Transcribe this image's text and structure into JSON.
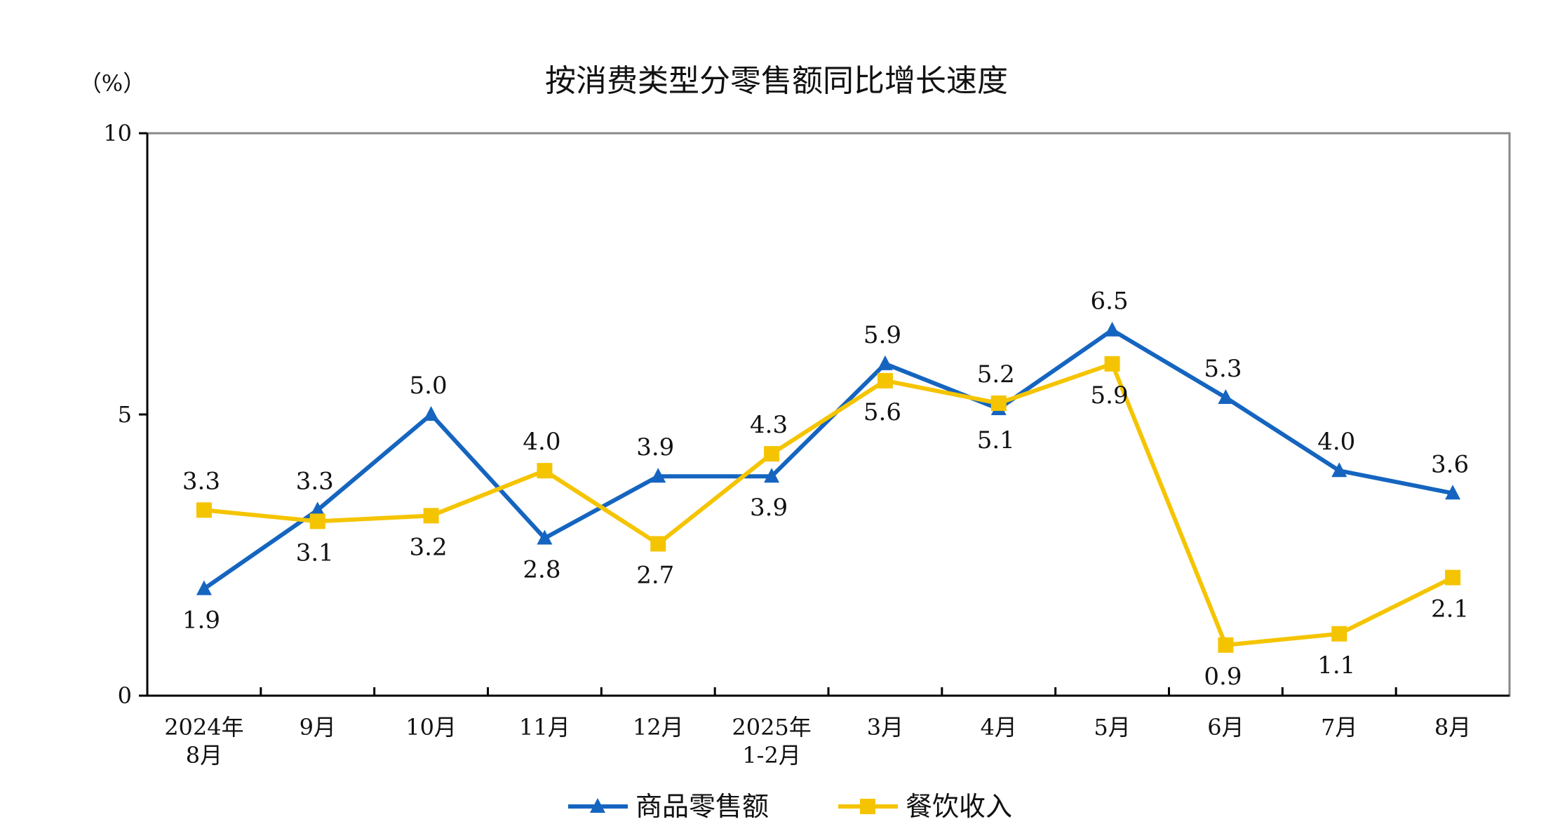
{
  "chart_data": {
    "type": "line",
    "title": "按消费类型分零售额同比增长速度",
    "unit_label": "（%）",
    "ylim": [
      0,
      10
    ],
    "yticks": [
      "0",
      "5",
      "10"
    ],
    "ytick_values": [
      0,
      5,
      10
    ],
    "categories": [
      [
        "2024年",
        "8月"
      ],
      [
        "9月"
      ],
      [
        "10月"
      ],
      [
        "11月"
      ],
      [
        "12月"
      ],
      [
        "2025年",
        "1-2月"
      ],
      [
        "3月"
      ],
      [
        "4月"
      ],
      [
        "5月"
      ],
      [
        "6月"
      ],
      [
        "7月"
      ],
      [
        "8月"
      ]
    ],
    "series": [
      {
        "name": "商品零售额",
        "color": "#1565C0",
        "marker": "triangle",
        "values": [
          1.9,
          3.3,
          5.0,
          2.8,
          3.9,
          3.9,
          5.9,
          5.1,
          6.5,
          5.3,
          4.0,
          3.6
        ],
        "labels": [
          "1.9",
          "3.3",
          "5.0",
          "2.8",
          "3.9",
          "3.9",
          "5.9",
          "5.1",
          "6.5",
          "5.3",
          "4.0",
          "3.6"
        ],
        "label_pos": [
          "below",
          "above",
          "above",
          "below",
          "above",
          "below",
          "above",
          "below",
          "above",
          "above",
          "above",
          "above"
        ]
      },
      {
        "name": "餐饮收入",
        "color": "#F5C400",
        "marker": "square",
        "values": [
          3.3,
          3.1,
          3.2,
          4.0,
          2.7,
          4.3,
          5.6,
          5.2,
          5.9,
          0.9,
          1.1,
          2.1
        ],
        "labels": [
          "3.3",
          "3.1",
          "3.2",
          "4.0",
          "2.7",
          "4.3",
          "5.6",
          "5.2",
          "5.9",
          "0.9",
          "1.1",
          "2.1"
        ],
        "label_pos": [
          "above",
          "below",
          "below",
          "above",
          "below",
          "above",
          "below",
          "above",
          "below",
          "below",
          "below",
          "below"
        ]
      }
    ],
    "grid": false,
    "legend_position": "bottom-center"
  }
}
